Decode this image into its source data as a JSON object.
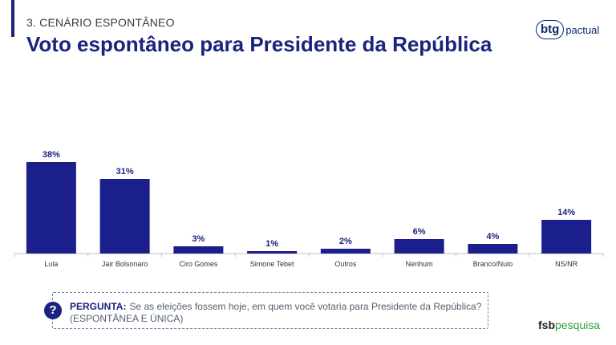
{
  "header": {
    "kicker": "3. CENÁRIO ESPONTÂNEO",
    "title": "Voto espontâneo para Presidente da República"
  },
  "logos": {
    "btg_mark": "btg",
    "btg_word": "pactual",
    "fsb_a": "fsb",
    "fsb_b": "pesquisa"
  },
  "question": {
    "icon": "question-mark-icon",
    "icon_glyph": "?",
    "label": "PERGUNTA:",
    "text": "Se as eleições fossem hoje, em quem você votaria para Presidente da República?",
    "note": "(ESPONTÂNEA E ÚNICA)"
  },
  "colors": {
    "bar": "#1a1f8c",
    "title": "#1a237e",
    "fsb_green": "#2e9e3e"
  },
  "chart_data": {
    "type": "bar",
    "categories": [
      "Lula",
      "Jair Bolsonaro",
      "Ciro Gomes",
      "Simone Tebet",
      "Outros",
      "Nenhum",
      "Branco/Nulo",
      "NS/NR"
    ],
    "values": [
      38,
      31,
      3,
      1,
      2,
      6,
      4,
      14
    ],
    "data_labels": [
      "38%",
      "31%",
      "3%",
      "1%",
      "2%",
      "6%",
      "4%",
      "14%"
    ],
    "ylim": [
      0,
      40
    ],
    "grid": false,
    "legend": "none"
  }
}
